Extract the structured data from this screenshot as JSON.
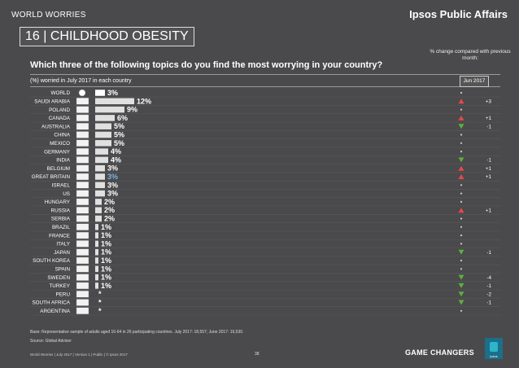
{
  "header": {
    "series_title": "WORLD WORRIES",
    "brand": "Ipsos Public Affairs"
  },
  "title": "16 | CHILDHOOD OBESITY",
  "question": "Which three of the following topics do you find the most worrying in your country?",
  "subtitle": "(%) worried in July 2017 in each country",
  "change_note": "% change compared with previous month:",
  "column_header": "Jun 2017",
  "footer": {
    "base": "Base: Representative sample of adults aged 16-64 in 26 participating countries. July 2017: 18,557; June 2017: 19,530.",
    "source": "Source: Global Advisor",
    "version": "World Worries | July 2017 | Version 1 | Public | © Ipsos 2017",
    "page": "38",
    "tagline": "GAME CHANGERS",
    "logo_text": "Ipsos"
  },
  "colors": {
    "bar": "#e0e0e0",
    "bar_world": "#ffffff",
    "up": "#e8474c",
    "down": "#5fae3e",
    "neutral": "#cfcfcf",
    "background": "#4a4a4c"
  },
  "chart_data": {
    "type": "bar",
    "orientation": "horizontal",
    "categories": [
      "WORLD",
      "SAUDI ARABIA",
      "POLAND",
      "CANADA",
      "AUSTRALIA",
      "CHINA",
      "MEXICO",
      "GERMANY",
      "INDIA",
      "BELGIUM",
      "GREAT BRITAIN",
      "ISRAEL",
      "US",
      "HUNGARY",
      "RUSSIA",
      "SERBIA",
      "BRAZIL",
      "FRANCE",
      "ITALY",
      "JAPAN",
      "SOUTH KOREA",
      "SPAIN",
      "SWEDEN",
      "TURKEY",
      "PERU",
      "SOUTH AFRICA",
      "ARGENTINA"
    ],
    "values": [
      3,
      12,
      9,
      6,
      5,
      5,
      5,
      4,
      4,
      3,
      3,
      3,
      3,
      2,
      2,
      2,
      1,
      1,
      1,
      1,
      1,
      1,
      1,
      1,
      null,
      null,
      null
    ],
    "value_labels": [
      "3%",
      "12%",
      "9%",
      "6%",
      "5%",
      "5%",
      "5%",
      "4%",
      "4%",
      "3%",
      "3%",
      "3%",
      "3%",
      "2%",
      "2%",
      "2%",
      "1%",
      "1%",
      "1%",
      "1%",
      "1%",
      "1%",
      "1%",
      "1%",
      "*",
      "*",
      "*"
    ],
    "highlight": [
      "GREAT BRITAIN"
    ],
    "change_direction": [
      "none",
      "up",
      "none",
      "up",
      "down",
      "none",
      "none",
      "none",
      "down",
      "up",
      "up",
      "none",
      "none",
      "none",
      "up",
      "none",
      "none",
      "none",
      "none",
      "down",
      "none",
      "none",
      "down",
      "down",
      "down",
      "down",
      "none"
    ],
    "change_labels": [
      "",
      "+3",
      "",
      "+1",
      "-1",
      "",
      "",
      "",
      "-1",
      "+1",
      "+1",
      "",
      "",
      "",
      "+1",
      "",
      "",
      "",
      "",
      "-1",
      "",
      "",
      "-4",
      "-1",
      "-2",
      "-1",
      ""
    ],
    "xlim": [
      0,
      12
    ]
  }
}
